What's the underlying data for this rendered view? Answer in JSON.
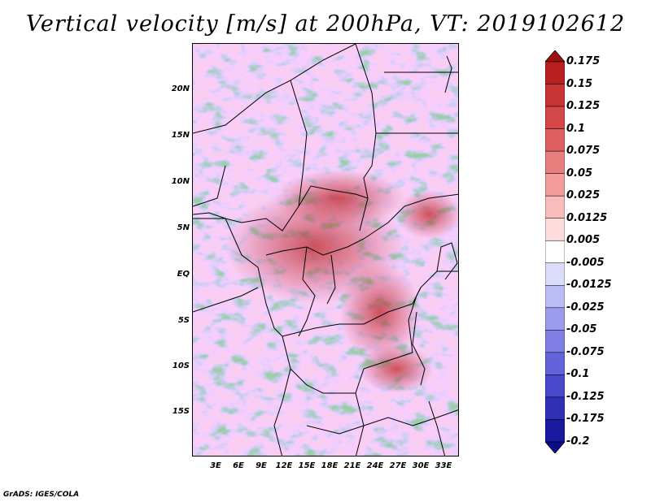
{
  "title": "Vertical velocity [m/s] at 200hPa, VT: 2019102612",
  "lat_labels": [
    "20N",
    "15N",
    "10N",
    "5N",
    "EQ",
    "5S",
    "10S",
    "15S"
  ],
  "lon_labels": [
    "3E",
    "6E",
    "9E",
    "12E",
    "15E",
    "18E",
    "21E",
    "24E",
    "27E",
    "30E",
    "33E"
  ],
  "colorbar": {
    "levels": [
      "0.175",
      "0.15",
      "0.125",
      "0.1",
      "0.075",
      "0.05",
      "0.025",
      "0.0125",
      "0.005",
      "-0.005",
      "-0.0125",
      "-0.025",
      "-0.05",
      "-0.075",
      "-0.1",
      "-0.125",
      "-0.175",
      "-0.2"
    ],
    "colors": [
      "#a01010",
      "#b82020",
      "#c83434",
      "#d44848",
      "#de6060",
      "#e87e7e",
      "#f29c9c",
      "#f8bcbc",
      "#fcdcdc",
      "#ffffff",
      "#dcdcfc",
      "#bcbcf6",
      "#9c9cee",
      "#8080e4",
      "#6464da",
      "#4848ca",
      "#3030b4",
      "#1a1aa0",
      "#0c0c8c"
    ]
  },
  "credit": "GrADS: IGES/COLA"
}
